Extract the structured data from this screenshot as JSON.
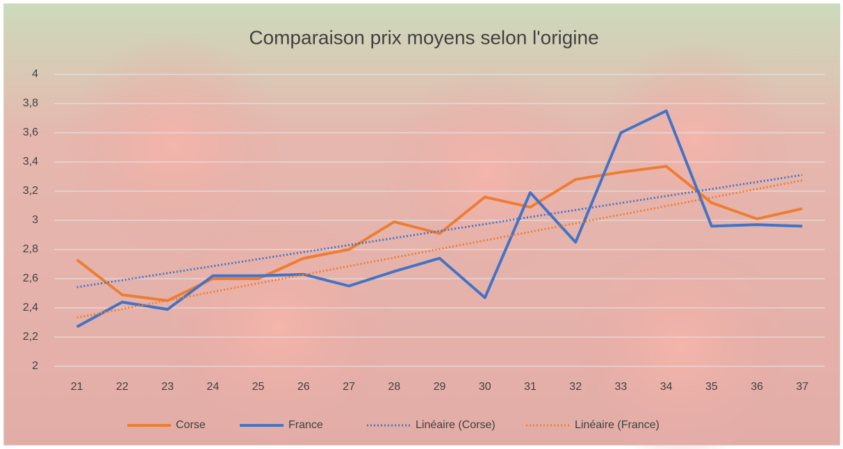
{
  "chart_data": {
    "type": "line",
    "title": "Comparaison prix moyens selon l'origine",
    "categories": [
      "21",
      "22",
      "23",
      "24",
      "25",
      "26",
      "27",
      "28",
      "29",
      "30",
      "31",
      "32",
      "33",
      "34",
      "35",
      "36",
      "37"
    ],
    "series": [
      {
        "name": "Corse",
        "color": "#ed7d31",
        "values": [
          2.73,
          2.49,
          2.45,
          2.6,
          2.6,
          2.74,
          2.8,
          2.99,
          2.91,
          3.16,
          3.09,
          3.28,
          3.33,
          3.37,
          3.12,
          3.01,
          3.08
        ],
        "trendline": {
          "name": "Linéaire (Corse)",
          "color": "#4472c4"
        }
      },
      {
        "name": "France",
        "color": "#4472c4",
        "values": [
          2.27,
          2.44,
          2.39,
          2.62,
          2.62,
          2.63,
          2.55,
          2.65,
          2.74,
          2.47,
          3.19,
          2.85,
          3.6,
          3.75,
          2.96,
          2.97,
          2.96
        ],
        "trendline": {
          "name": "Linéaire (France)",
          "color": "#ed7d31"
        }
      }
    ],
    "ylim": [
      2,
      4
    ],
    "yticks": [
      2,
      {
        "value": 2.2,
        "label": "2,2"
      },
      {
        "value": 2.4,
        "label": "2,4"
      },
      {
        "value": 2.6,
        "label": "2,6"
      },
      {
        "value": 2.8,
        "label": "2,8"
      },
      3,
      {
        "value": 3.2,
        "label": "3,2"
      },
      {
        "value": 3.4,
        "label": "3,4"
      },
      {
        "value": 3.6,
        "label": "3,6"
      },
      {
        "value": 3.8,
        "label": "3,8"
      },
      4
    ],
    "grid": true,
    "legend": "bottom"
  }
}
